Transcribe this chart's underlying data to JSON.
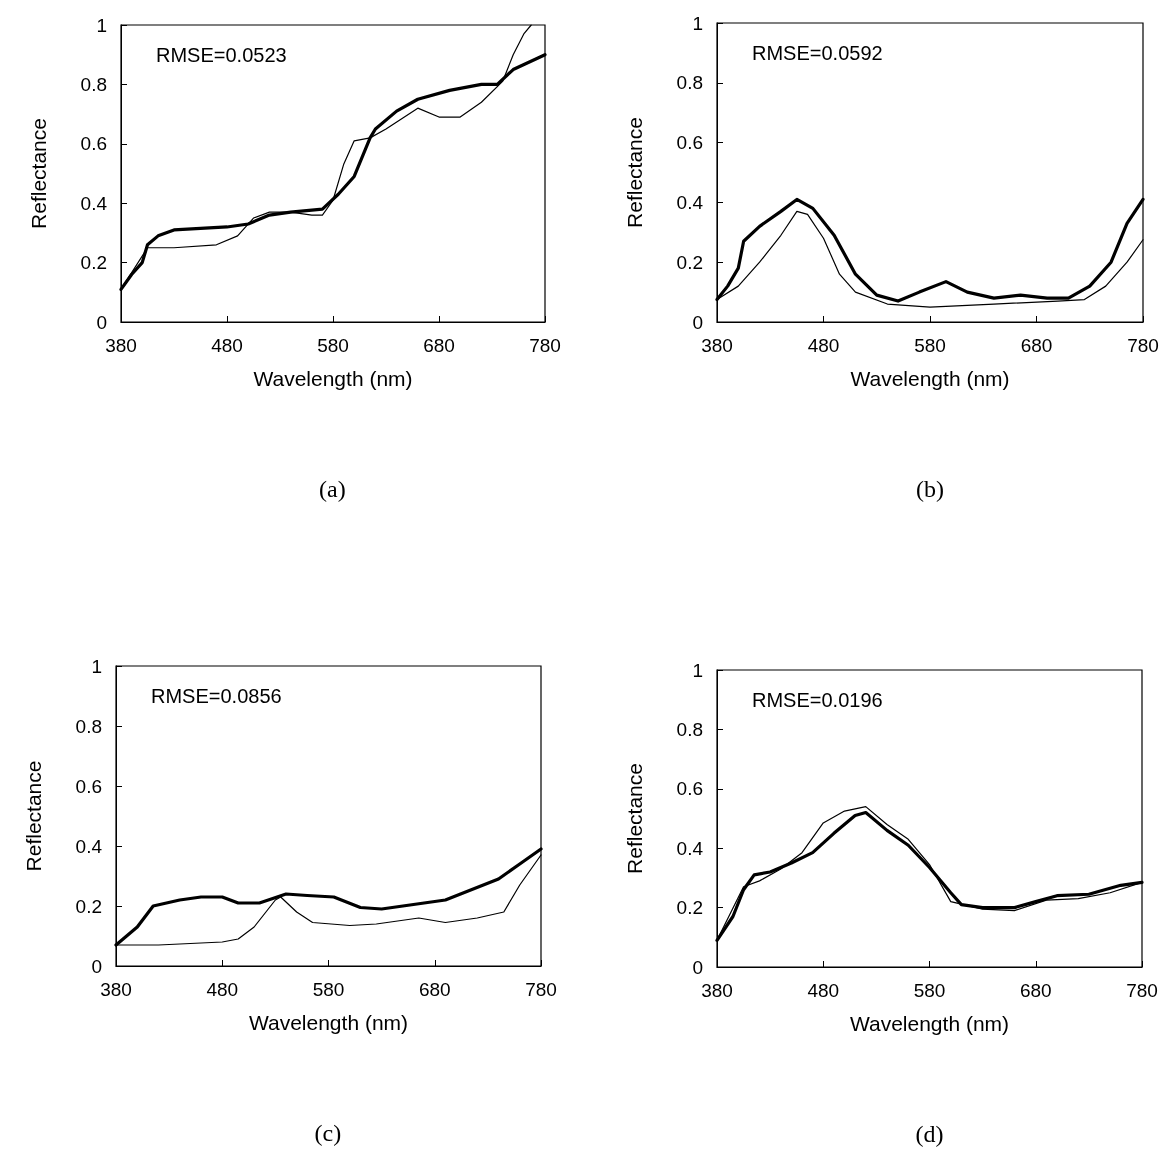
{
  "chart_data": [
    {
      "type": "line",
      "xlabel": "Wavelength (nm)",
      "ylabel": "Reflectance",
      "annotations": [
        "RMSE=0.0523",
        "(a)"
      ],
      "xlim": [
        380,
        780
      ],
      "xticks": [
        380,
        480,
        580,
        680,
        780
      ],
      "ylim": [
        0,
        1
      ],
      "yticks": [
        0,
        0.2,
        0.4,
        0.6,
        0.8,
        1
      ],
      "grid": false,
      "marker": "none",
      "line_style": "solid",
      "series": [
        {
          "color": "#000000",
          "x": [
            380,
            390,
            400,
            405,
            415,
            430,
            480,
            500,
            520,
            540,
            570,
            585,
            600,
            615,
            620,
            640,
            660,
            690,
            720,
            735,
            750,
            780
          ],
          "values": [
            0.11,
            0.16,
            0.2,
            0.26,
            0.29,
            0.31,
            0.32,
            0.33,
            0.36,
            0.37,
            0.38,
            0.43,
            0.49,
            0.62,
            0.65,
            0.71,
            0.75,
            0.78,
            0.8,
            0.8,
            0.85,
            0.9
          ]
        },
        {
          "color": "#000000",
          "x": [
            380,
            405,
            430,
            470,
            490,
            505,
            520,
            540,
            560,
            570,
            580,
            590,
            600,
            615,
            630,
            660,
            680,
            700,
            720,
            740,
            750,
            760,
            767
          ],
          "values": [
            0.11,
            0.25,
            0.25,
            0.26,
            0.29,
            0.35,
            0.37,
            0.37,
            0.36,
            0.36,
            0.41,
            0.53,
            0.61,
            0.62,
            0.65,
            0.72,
            0.69,
            0.69,
            0.74,
            0.81,
            0.9,
            0.97,
            1
          ]
        }
      ]
    },
    {
      "type": "line",
      "xlabel": "Wavelength (nm)",
      "ylabel": "Reflectance",
      "annotations": [
        "RMSE=0.0592",
        "(b)"
      ],
      "xlim": [
        380,
        780
      ],
      "xticks": [
        380,
        480,
        580,
        680,
        780
      ],
      "ylim": [
        0,
        1
      ],
      "yticks": [
        0,
        0.2,
        0.4,
        0.6,
        0.8,
        1
      ],
      "grid": false,
      "marker": "none",
      "line_style": "solid",
      "series": [
        {
          "color": "#000000",
          "x": [
            380,
            390,
            400,
            405,
            420,
            440,
            455,
            470,
            490,
            510,
            530,
            550,
            570,
            595,
            615,
            640,
            665,
            690,
            710,
            730,
            750,
            765,
            780
          ],
          "values": [
            0.075,
            0.12,
            0.18,
            0.27,
            0.32,
            0.37,
            0.41,
            0.38,
            0.29,
            0.16,
            0.09,
            0.07,
            0.1,
            0.135,
            0.1,
            0.08,
            0.09,
            0.08,
            0.08,
            0.12,
            0.2,
            0.33,
            0.41
          ]
        },
        {
          "color": "#000000",
          "x": [
            380,
            400,
            420,
            440,
            455,
            465,
            480,
            495,
            510,
            540,
            580,
            640,
            700,
            725,
            745,
            765,
            780
          ],
          "values": [
            0.075,
            0.12,
            0.2,
            0.29,
            0.37,
            0.36,
            0.28,
            0.16,
            0.1,
            0.06,
            0.05,
            0.06,
            0.07,
            0.075,
            0.12,
            0.2,
            0.275
          ]
        }
      ]
    },
    {
      "type": "line",
      "xlabel": "Wavelength (nm)",
      "ylabel": "Reflectance",
      "annotations": [
        "RMSE=0.0856",
        "(c)"
      ],
      "xlim": [
        380,
        780
      ],
      "xticks": [
        380,
        480,
        580,
        680,
        780
      ],
      "ylim": [
        0,
        1
      ],
      "yticks": [
        0,
        0.2,
        0.4,
        0.6,
        0.8,
        1
      ],
      "grid": false,
      "marker": "none",
      "line_style": "solid",
      "series": [
        {
          "color": "#000000",
          "x": [
            380,
            400,
            415,
            440,
            460,
            480,
            495,
            515,
            540,
            560,
            585,
            610,
            630,
            660,
            690,
            715,
            740,
            760,
            780
          ],
          "values": [
            0.07,
            0.13,
            0.2,
            0.22,
            0.23,
            0.23,
            0.21,
            0.21,
            0.24,
            0.235,
            0.23,
            0.195,
            0.19,
            0.205,
            0.22,
            0.255,
            0.29,
            0.34,
            0.39
          ]
        },
        {
          "color": "#000000",
          "x": [
            380,
            420,
            480,
            495,
            510,
            530,
            535,
            550,
            565,
            600,
            625,
            665,
            690,
            720,
            745,
            760,
            780
          ],
          "values": [
            0.07,
            0.07,
            0.08,
            0.09,
            0.13,
            0.22,
            0.23,
            0.18,
            0.145,
            0.135,
            0.14,
            0.16,
            0.145,
            0.16,
            0.18,
            0.27,
            0.37
          ]
        }
      ]
    },
    {
      "type": "line",
      "xlabel": "Wavelength (nm)",
      "ylabel": "Reflectance",
      "annotations": [
        "RMSE=0.0196",
        "(d)"
      ],
      "xlim": [
        380,
        780
      ],
      "xticks": [
        380,
        480,
        580,
        680,
        780
      ],
      "ylim": [
        0,
        1
      ],
      "yticks": [
        0,
        0.2,
        0.4,
        0.6,
        0.8,
        1
      ],
      "grid": false,
      "marker": "none",
      "line_style": "solid",
      "series": [
        {
          "color": "#000000",
          "x": [
            380,
            395,
            405,
            415,
            430,
            450,
            470,
            490,
            510,
            520,
            540,
            560,
            580,
            600,
            610,
            630,
            660,
            680,
            700,
            730,
            760,
            780
          ],
          "values": [
            0.09,
            0.17,
            0.26,
            0.31,
            0.32,
            0.35,
            0.385,
            0.45,
            0.51,
            0.52,
            0.46,
            0.41,
            0.335,
            0.25,
            0.21,
            0.2,
            0.2,
            0.22,
            0.24,
            0.245,
            0.275,
            0.285
          ]
        },
        {
          "color": "#000000",
          "x": [
            380,
            405,
            420,
            440,
            460,
            480,
            500,
            520,
            540,
            560,
            580,
            600,
            630,
            660,
            690,
            720,
            750,
            780
          ],
          "values": [
            0.09,
            0.27,
            0.29,
            0.33,
            0.385,
            0.485,
            0.525,
            0.54,
            0.48,
            0.43,
            0.345,
            0.22,
            0.195,
            0.19,
            0.225,
            0.23,
            0.25,
            0.285
          ]
        }
      ]
    }
  ]
}
